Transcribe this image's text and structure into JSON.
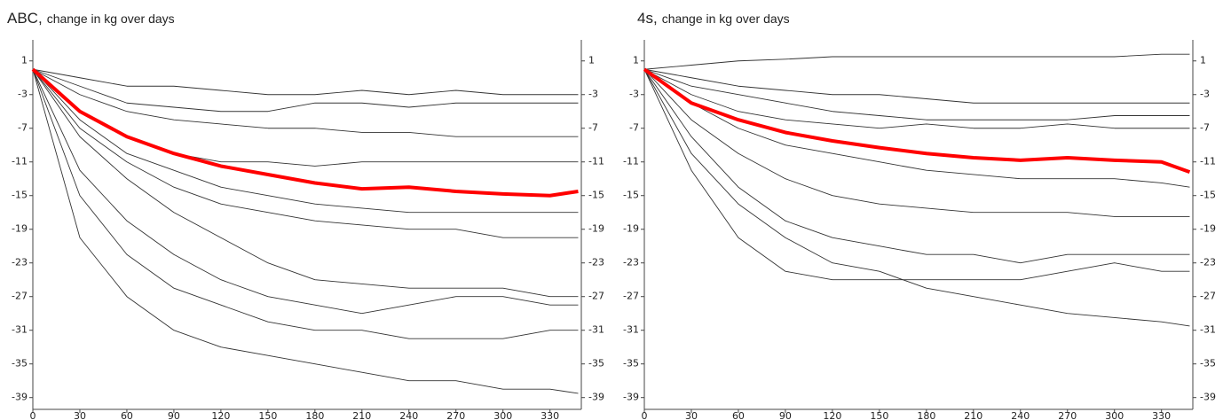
{
  "chart_data": [
    {
      "type": "line",
      "title": "ABC,",
      "subtitle": "change in kg over days",
      "x": [
        0,
        30,
        60,
        90,
        120,
        150,
        180,
        210,
        240,
        270,
        300,
        330,
        348
      ],
      "xlim": [
        0,
        350
      ],
      "xticks": [
        0,
        30,
        60,
        90,
        120,
        150,
        180,
        210,
        240,
        270,
        300,
        330
      ],
      "ylim": [
        -40.4,
        3.5
      ],
      "yticks": [
        1,
        -3,
        -7,
        -11,
        -15,
        -19,
        -23,
        -27,
        -31,
        -35,
        -39
      ],
      "series": [
        {
          "color": "#333333",
          "values": [
            0,
            -1,
            -2,
            -2,
            -2.5,
            -3,
            -3,
            -2.5,
            -3,
            -2.5,
            -3,
            -3,
            -3
          ]
        },
        {
          "color": "#333333",
          "values": [
            0,
            -3,
            -5,
            -6,
            -6.5,
            -7,
            -7,
            -7.5,
            -7.5,
            -8,
            -8,
            -8,
            -8
          ]
        },
        {
          "color": "#333333",
          "values": [
            0,
            -5,
            -8,
            -10,
            -11,
            -11,
            -11.5,
            -11,
            -11,
            -11,
            -11,
            -11,
            -11
          ]
        },
        {
          "color": "#333333",
          "values": [
            0,
            -7,
            -11,
            -14,
            -16,
            -17,
            -18,
            -18.5,
            -19,
            -19,
            -20,
            -20,
            -20
          ]
        },
        {
          "color": "#333333",
          "values": [
            0,
            -8,
            -13,
            -17,
            -20,
            -23,
            -25,
            -25.5,
            -26,
            -26,
            -26,
            -27,
            -27
          ]
        },
        {
          "color": "#333333",
          "values": [
            0,
            -12,
            -18,
            -22,
            -25,
            -27,
            -28,
            -29,
            -28,
            -27,
            -27,
            -28,
            -28
          ]
        },
        {
          "color": "#333333",
          "values": [
            0,
            -15,
            -22,
            -26,
            -28,
            -30,
            -31,
            -31,
            -32,
            -32,
            -32,
            -31,
            -31
          ]
        },
        {
          "color": "#333333",
          "values": [
            0,
            -20,
            -27,
            -31,
            -33,
            -34,
            -35,
            -36,
            -37,
            -37,
            -38,
            -38,
            -38.5
          ]
        },
        {
          "color": "#333333",
          "values": [
            0,
            -2,
            -4,
            -4.5,
            -5,
            -5,
            -4,
            -4,
            -4.5,
            -4,
            -4,
            -4,
            -4
          ]
        },
        {
          "color": "#333333",
          "values": [
            0,
            -6,
            -10,
            -12,
            -14,
            -15,
            -16,
            -16.5,
            -17,
            -17,
            -17,
            -17,
            -17
          ]
        },
        {
          "color": "#ff0000",
          "values": [
            0,
            -5,
            -8,
            -10,
            -11.5,
            -12.5,
            -13.5,
            -14.2,
            -14,
            -14.5,
            -14.8,
            -15,
            -14.5
          ]
        }
      ]
    },
    {
      "type": "line",
      "title": "4s,",
      "subtitle": "change in kg over days",
      "x": [
        0,
        30,
        60,
        90,
        120,
        150,
        180,
        210,
        240,
        270,
        300,
        330,
        348
      ],
      "xlim": [
        0,
        350
      ],
      "xticks": [
        0,
        30,
        60,
        90,
        120,
        150,
        180,
        210,
        240,
        270,
        300,
        330
      ],
      "ylim": [
        -40.4,
        3.5
      ],
      "yticks": [
        1,
        -3,
        -7,
        -11,
        -15,
        -19,
        -23,
        -27,
        -31,
        -35,
        -39
      ],
      "series": [
        {
          "color": "#333333",
          "values": [
            0,
            0.5,
            1,
            1.2,
            1.5,
            1.5,
            1.5,
            1.5,
            1.5,
            1.5,
            1.5,
            1.8,
            1.8
          ]
        },
        {
          "color": "#333333",
          "values": [
            0,
            -1,
            -2,
            -2.5,
            -3,
            -3,
            -3.5,
            -4,
            -4,
            -4,
            -4,
            -4,
            -4
          ]
        },
        {
          "color": "#333333",
          "values": [
            0,
            -3,
            -5,
            -6,
            -6.5,
            -7,
            -6.5,
            -7,
            -7,
            -6.5,
            -7,
            -7,
            -7
          ]
        },
        {
          "color": "#333333",
          "values": [
            0,
            -4,
            -7,
            -9,
            -10,
            -11,
            -12,
            -12.5,
            -13,
            -13,
            -13,
            -13.5,
            -14
          ]
        },
        {
          "color": "#333333",
          "values": [
            0,
            -6,
            -10,
            -13,
            -15,
            -16,
            -16.5,
            -17,
            -17,
            -17,
            -17.5,
            -17.5,
            -17.5
          ]
        },
        {
          "color": "#333333",
          "values": [
            0,
            -8,
            -14,
            -18,
            -20,
            -21,
            -22,
            -22,
            -23,
            -22,
            -22,
            -22,
            -22
          ]
        },
        {
          "color": "#333333",
          "values": [
            0,
            -12,
            -20,
            -24,
            -25,
            -25,
            -25,
            -25,
            -25,
            -24,
            -23,
            -24,
            -24
          ]
        },
        {
          "color": "#333333",
          "values": [
            0,
            -10,
            -16,
            -20,
            -23,
            -24,
            -26,
            -27,
            -28,
            -29,
            -29.5,
            -30,
            -30.5
          ]
        },
        {
          "color": "#333333",
          "values": [
            0,
            -2,
            -3,
            -4,
            -5,
            -5.5,
            -6,
            -6,
            -6,
            -6,
            -5.5,
            -5.5,
            -5.5
          ]
        },
        {
          "color": "#ff0000",
          "values": [
            0,
            -4,
            -6,
            -7.5,
            -8.5,
            -9.3,
            -10,
            -10.5,
            -10.8,
            -10.5,
            -10.8,
            -11,
            -12.2
          ]
        }
      ]
    }
  ]
}
